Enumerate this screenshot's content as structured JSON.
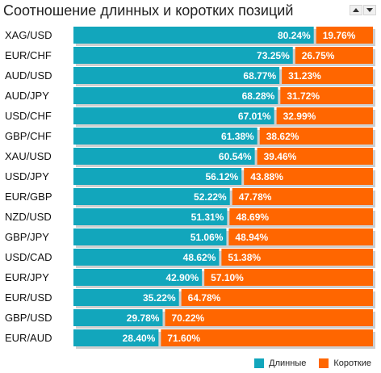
{
  "title": "Соотношение длинных и коротких позиций",
  "controls": {
    "up_icon": "arrow-up-icon",
    "down_icon": "arrow-down-icon"
  },
  "colors": {
    "long": "#12a6bc",
    "short": "#ff6600",
    "track": "#cfcfcf"
  },
  "legend": {
    "long_label": "Длинные",
    "short_label": "Короткие"
  },
  "chart_data": {
    "type": "bar",
    "stacked": true,
    "orientation": "horizontal",
    "categories": [
      "XAG/USD",
      "EUR/CHF",
      "AUD/USD",
      "AUD/JPY",
      "USD/CHF",
      "GBP/CHF",
      "XAU/USD",
      "USD/JPY",
      "EUR/GBP",
      "NZD/USD",
      "GBP/JPY",
      "USD/CAD",
      "EUR/JPY",
      "EUR/USD",
      "GBP/USD",
      "EUR/AUD"
    ],
    "series": [
      {
        "name": "Длинные",
        "values": [
          80.24,
          73.25,
          68.77,
          68.28,
          67.01,
          61.38,
          60.54,
          56.12,
          52.22,
          51.31,
          51.06,
          48.62,
          42.9,
          35.22,
          29.78,
          28.4
        ],
        "labels": [
          "80.24%",
          "73.25%",
          "68.77%",
          "68.28%",
          "67.01%",
          "61.38%",
          "60.54%",
          "56.12%",
          "52.22%",
          "51.31%",
          "51.06%",
          "48.62%",
          "42.90%",
          "35.22%",
          "29.78%",
          "28.40%"
        ]
      },
      {
        "name": "Короткие",
        "values": [
          19.76,
          26.75,
          31.23,
          31.72,
          32.99,
          38.62,
          39.46,
          43.88,
          47.78,
          48.69,
          48.94,
          51.38,
          57.1,
          64.78,
          70.22,
          71.6
        ],
        "labels": [
          "19.76%",
          "26.75%",
          "31.23%",
          "31.72%",
          "32.99%",
          "38.62%",
          "39.46%",
          "43.88%",
          "47.78%",
          "48.69%",
          "48.94%",
          "51.38%",
          "57.10%",
          "64.78%",
          "70.22%",
          "71.60%"
        ]
      }
    ],
    "xlim": [
      0,
      100
    ]
  }
}
